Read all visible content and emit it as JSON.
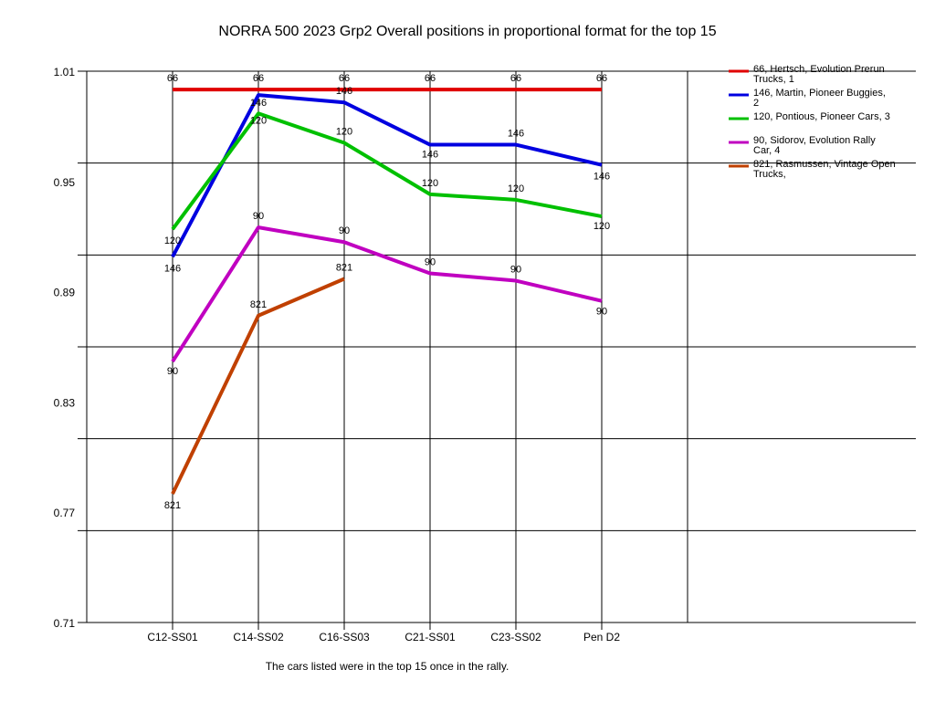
{
  "chart_data": {
    "type": "line",
    "title": "NORRA 500 2023 Grp2  Overall positions in proportional format for the top 15",
    "footnote": "The cars listed were in the top 15 once in the rally.",
    "categories": [
      "C12-SS01",
      "C14-SS02",
      "C16-SS03",
      "C21-SS01",
      "C23-SS02",
      "Pen D2"
    ],
    "y_ticks": [
      "1.01",
      "0.95",
      "0.89",
      "0.83",
      "0.77",
      "0.71"
    ],
    "ylim": [
      0.71,
      1.01
    ],
    "grid": true,
    "legend_position": "right",
    "series": [
      {
        "name": "66, Hertsch, Evolution Prerun Trucks, 1",
        "point_label": "66",
        "color": "#e00000",
        "values": [
          1.0,
          1.0,
          1.0,
          1.0,
          1.0,
          1.0
        ]
      },
      {
        "name": "146, Martin, Pioneer Buggies, 2",
        "point_label": "146",
        "color": "#0000e0",
        "values": [
          0.909,
          0.997,
          0.993,
          0.97,
          0.97,
          0.959
        ]
      },
      {
        "name": "120, Pontious, Pioneer Cars, 3",
        "point_label": "120",
        "color": "#00c000",
        "values": [
          0.924,
          0.987,
          0.971,
          0.943,
          0.94,
          0.931
        ]
      },
      {
        "name": "90, Sidorov, Evolution Rally Car, 4",
        "point_label": "90",
        "color": "#c000c0",
        "values": [
          0.852,
          0.925,
          0.917,
          0.9,
          0.896,
          0.885
        ]
      },
      {
        "name": "821, Rasmussen, Vintage Open Trucks,",
        "point_label": "821",
        "color": "#c04000",
        "values": [
          0.78,
          0.877,
          0.897,
          null,
          null,
          null
        ]
      }
    ]
  }
}
